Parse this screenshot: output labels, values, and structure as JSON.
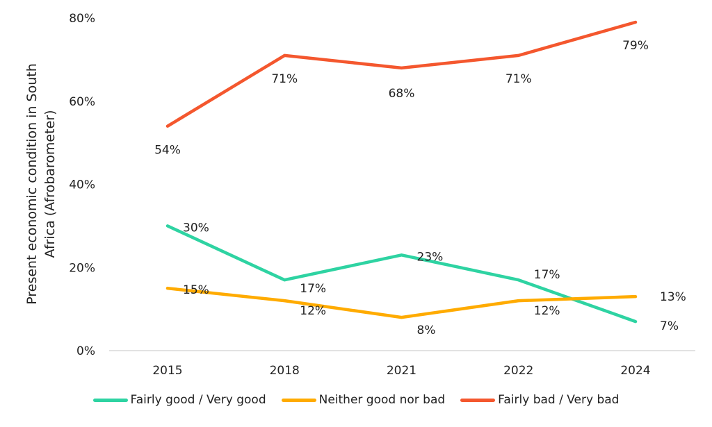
{
  "chart_data": {
    "type": "line",
    "title": "",
    "xlabel": "",
    "ylabel": "Present economic condition in South Africa (Afrobarometer)",
    "ylabel_lines": [
      "Present economic condition in South",
      "Africa (Afrobarometer)"
    ],
    "categories": [
      "2015",
      "2018",
      "2021",
      "2022",
      "2024"
    ],
    "ylim": [
      0,
      80
    ],
    "yticks": [
      0,
      20,
      40,
      60,
      80
    ],
    "ytick_labels": [
      "0%",
      "20%",
      "40%",
      "60%",
      "80%"
    ],
    "grid": false,
    "legend_position": "bottom",
    "series": [
      {
        "name": "Fairly good / Very good",
        "color": "#2ED3A2",
        "values": [
          30,
          17,
          23,
          17,
          7
        ],
        "labels": [
          "30%",
          "17%",
          "23%",
          "17%",
          "7%"
        ]
      },
      {
        "name": "Neither good nor bad",
        "color": "#FFAB00",
        "values": [
          15,
          12,
          8,
          12,
          13
        ],
        "labels": [
          "15%",
          "12%",
          "8%",
          "12%",
          "13%"
        ]
      },
      {
        "name": "Fairly bad / Very bad",
        "color": "#F4572E",
        "values": [
          54,
          71,
          68,
          71,
          79
        ],
        "labels": [
          "54%",
          "71%",
          "68%",
          "71%",
          "79%"
        ]
      }
    ]
  }
}
